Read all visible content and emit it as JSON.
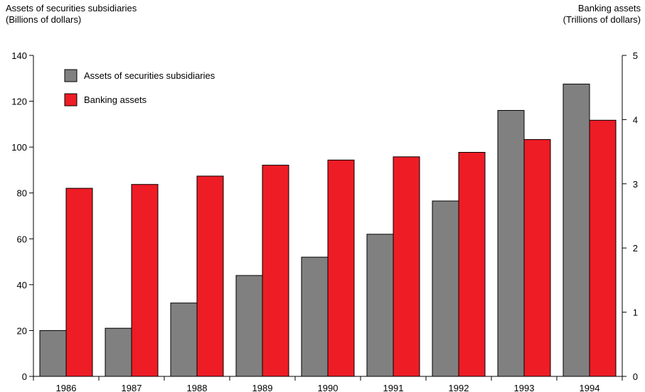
{
  "chart_data": {
    "type": "bar",
    "categories": [
      "1986",
      "1987",
      "1988",
      "1989",
      "1990",
      "1991",
      "1992",
      "1993",
      "1994"
    ],
    "y_left": {
      "label_line1": "Assets of securities subsidiaries",
      "label_line2": "(Billions of dollars)",
      "ylim": [
        0,
        140
      ],
      "ticks": [
        0,
        20,
        40,
        60,
        80,
        100,
        120,
        140
      ]
    },
    "y_right": {
      "label_line1": "Banking assets",
      "label_line2": "(Trillions of dollars)",
      "ylim": [
        0,
        5
      ],
      "ticks": [
        0,
        1,
        2,
        3,
        4,
        5
      ]
    },
    "series": [
      {
        "name": "Assets of securities subsidiaries",
        "axis": "left",
        "color": "#808080",
        "values": [
          20,
          21,
          32,
          44,
          52,
          62,
          76.5,
          116,
          127.5
        ]
      },
      {
        "name": "Banking assets",
        "axis": "right",
        "color": "#ee1c25",
        "values": [
          2.93,
          2.99,
          3.12,
          3.29,
          3.37,
          3.42,
          3.49,
          3.69,
          3.99
        ]
      }
    ],
    "grid": false,
    "legend": "top-left"
  }
}
